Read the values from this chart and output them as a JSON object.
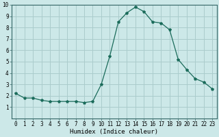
{
  "x": [
    0,
    1,
    2,
    3,
    4,
    5,
    6,
    7,
    8,
    9,
    10,
    11,
    12,
    13,
    14,
    15,
    16,
    17,
    18,
    19,
    20,
    21,
    22,
    23
  ],
  "y": [
    2.2,
    1.8,
    1.8,
    1.6,
    1.5,
    1.5,
    1.5,
    1.5,
    1.4,
    1.5,
    3.0,
    5.5,
    8.5,
    9.3,
    9.8,
    9.4,
    8.5,
    8.4,
    7.8,
    5.2,
    4.3,
    3.5,
    3.2,
    2.6
  ],
  "line_color": "#1a6b5a",
  "marker": "*",
  "marker_size": 3.0,
  "bg_color": "#cce8e8",
  "grid_color": "#aacccc",
  "xlabel": "Humidex (Indice chaleur)",
  "ylim": [
    0,
    10
  ],
  "xlim": [
    -0.5,
    23.5
  ],
  "yticks": [
    1,
    2,
    3,
    4,
    5,
    6,
    7,
    8,
    9,
    10
  ],
  "xticks": [
    0,
    1,
    2,
    3,
    4,
    5,
    6,
    7,
    8,
    9,
    10,
    11,
    12,
    13,
    14,
    15,
    16,
    17,
    18,
    19,
    20,
    21,
    22,
    23
  ],
  "tick_labelsize": 5.5,
  "xlabel_fontsize": 6.5
}
